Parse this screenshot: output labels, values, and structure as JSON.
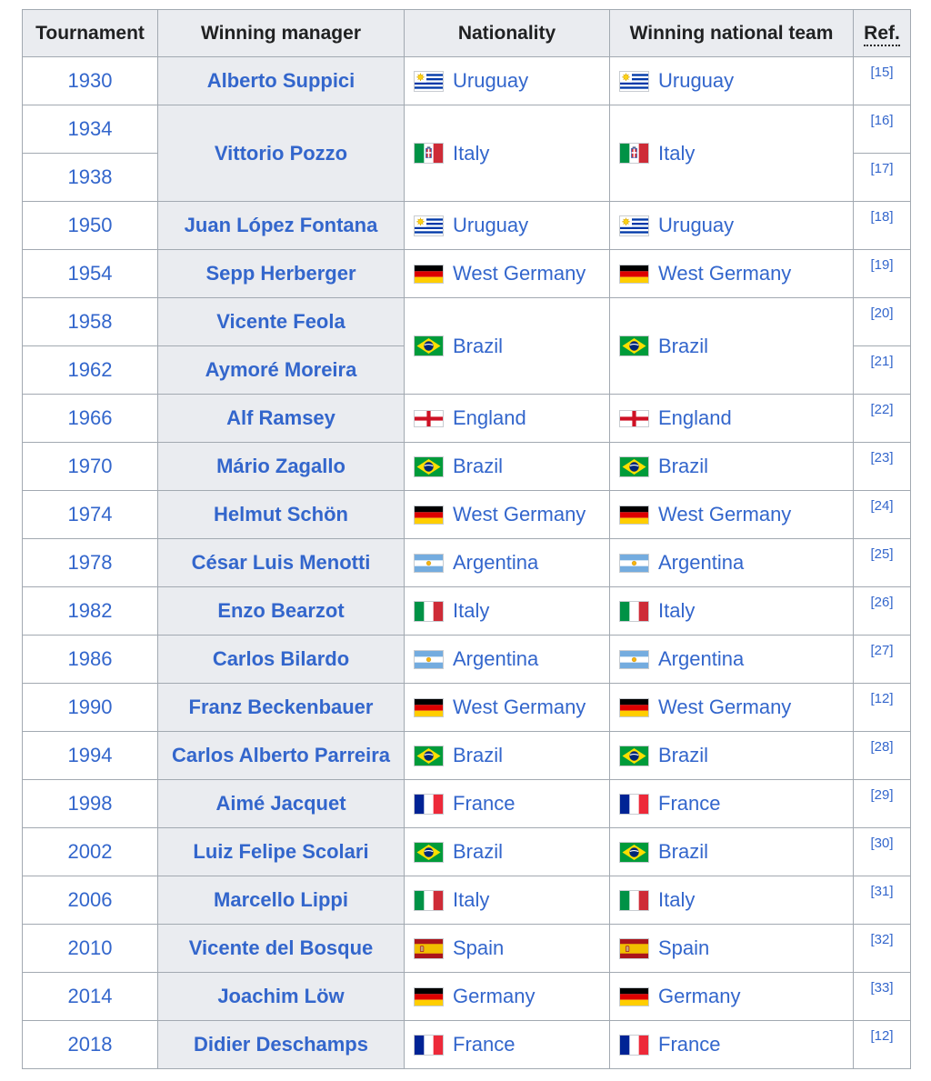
{
  "colors": {
    "link": "#3366cc",
    "text": "#202122",
    "header_background": "#eaecf0",
    "border": "#a2a9b1",
    "flag_border": "#c8ccd1"
  },
  "table": {
    "columns": [
      {
        "label": "Tournament"
      },
      {
        "label": "Winning manager"
      },
      {
        "label": "Nationality"
      },
      {
        "label": "Winning national team"
      },
      {
        "label": "Ref."
      }
    ],
    "rows": [
      {
        "year": "1930",
        "manager": {
          "text": "Alberto Suppici",
          "span": 1
        },
        "nationality": {
          "flag": "uruguay",
          "text": "Uruguay",
          "span": 1
        },
        "team": {
          "flag": "uruguay",
          "text": "Uruguay",
          "span": 1
        },
        "ref": "[15]"
      },
      {
        "year": "1934",
        "manager": {
          "text": "Vittorio Pozzo",
          "span": 2
        },
        "nationality": {
          "flag": "italy-1861",
          "text": "Italy",
          "span": 2
        },
        "team": {
          "flag": "italy-1861",
          "text": "Italy",
          "span": 2
        },
        "ref": "[16]"
      },
      {
        "year": "1938",
        "ref": "[17]"
      },
      {
        "year": "1950",
        "manager": {
          "text": "Juan López Fontana",
          "span": 1
        },
        "nationality": {
          "flag": "uruguay",
          "text": "Uruguay",
          "span": 1
        },
        "team": {
          "flag": "uruguay",
          "text": "Uruguay",
          "span": 1
        },
        "ref": "[18]"
      },
      {
        "year": "1954",
        "manager": {
          "text": "Sepp Herberger",
          "span": 1
        },
        "nationality": {
          "flag": "germany",
          "text": "West Germany",
          "span": 1
        },
        "team": {
          "flag": "germany",
          "text": "West Germany",
          "span": 1
        },
        "ref": "[19]"
      },
      {
        "year": "1958",
        "manager": {
          "text": "Vicente Feola",
          "span": 1
        },
        "nationality": {
          "flag": "brazil",
          "text": "Brazil",
          "span": 2
        },
        "team": {
          "flag": "brazil",
          "text": "Brazil",
          "span": 2
        },
        "ref": "[20]"
      },
      {
        "year": "1962",
        "manager": {
          "text": "Aymoré Moreira",
          "span": 1
        },
        "ref": "[21]"
      },
      {
        "year": "1966",
        "manager": {
          "text": "Alf Ramsey",
          "span": 1
        },
        "nationality": {
          "flag": "england",
          "text": "England",
          "span": 1
        },
        "team": {
          "flag": "england",
          "text": "England",
          "span": 1
        },
        "ref": "[22]"
      },
      {
        "year": "1970",
        "manager": {
          "text": "Mário Zagallo",
          "span": 1
        },
        "nationality": {
          "flag": "brazil",
          "text": "Brazil",
          "span": 1
        },
        "team": {
          "flag": "brazil",
          "text": "Brazil",
          "span": 1
        },
        "ref": "[23]"
      },
      {
        "year": "1974",
        "manager": {
          "text": "Helmut Schön",
          "span": 1
        },
        "nationality": {
          "flag": "germany",
          "text": "West Germany",
          "span": 1
        },
        "team": {
          "flag": "germany",
          "text": "West Germany",
          "span": 1
        },
        "ref": "[24]"
      },
      {
        "year": "1978",
        "manager": {
          "text": "César Luis Menotti",
          "span": 1
        },
        "nationality": {
          "flag": "argentina",
          "text": "Argentina",
          "span": 1
        },
        "team": {
          "flag": "argentina",
          "text": "Argentina",
          "span": 1
        },
        "ref": "[25]"
      },
      {
        "year": "1982",
        "manager": {
          "text": "Enzo Bearzot",
          "span": 1
        },
        "nationality": {
          "flag": "italy",
          "text": "Italy",
          "span": 1
        },
        "team": {
          "flag": "italy",
          "text": "Italy",
          "span": 1
        },
        "ref": "[26]"
      },
      {
        "year": "1986",
        "manager": {
          "text": "Carlos Bilardo",
          "span": 1
        },
        "nationality": {
          "flag": "argentina",
          "text": "Argentina",
          "span": 1
        },
        "team": {
          "flag": "argentina",
          "text": "Argentina",
          "span": 1
        },
        "ref": "[27]"
      },
      {
        "year": "1990",
        "manager": {
          "text": "Franz Beckenbauer",
          "span": 1
        },
        "nationality": {
          "flag": "germany",
          "text": "West Germany",
          "span": 1
        },
        "team": {
          "flag": "germany",
          "text": "West Germany",
          "span": 1
        },
        "ref": "[12]"
      },
      {
        "year": "1994",
        "manager": {
          "text": "Carlos Alberto Parreira",
          "span": 1
        },
        "nationality": {
          "flag": "brazil",
          "text": "Brazil",
          "span": 1
        },
        "team": {
          "flag": "brazil",
          "text": "Brazil",
          "span": 1
        },
        "ref": "[28]"
      },
      {
        "year": "1998",
        "manager": {
          "text": "Aimé Jacquet",
          "span": 1
        },
        "nationality": {
          "flag": "france",
          "text": "France",
          "span": 1
        },
        "team": {
          "flag": "france",
          "text": "France",
          "span": 1
        },
        "ref": "[29]"
      },
      {
        "year": "2002",
        "manager": {
          "text": "Luiz Felipe Scolari",
          "span": 1
        },
        "nationality": {
          "flag": "brazil",
          "text": "Brazil",
          "span": 1
        },
        "team": {
          "flag": "brazil",
          "text": "Brazil",
          "span": 1
        },
        "ref": "[30]"
      },
      {
        "year": "2006",
        "manager": {
          "text": "Marcello Lippi",
          "span": 1
        },
        "nationality": {
          "flag": "italy",
          "text": "Italy",
          "span": 1
        },
        "team": {
          "flag": "italy",
          "text": "Italy",
          "span": 1
        },
        "ref": "[31]"
      },
      {
        "year": "2010",
        "manager": {
          "text": "Vicente del Bosque",
          "span": 1
        },
        "nationality": {
          "flag": "spain",
          "text": "Spain",
          "span": 1
        },
        "team": {
          "flag": "spain",
          "text": "Spain",
          "span": 1
        },
        "ref": "[32]"
      },
      {
        "year": "2014",
        "manager": {
          "text": "Joachim Löw",
          "span": 1
        },
        "nationality": {
          "flag": "germany",
          "text": "Germany",
          "span": 1
        },
        "team": {
          "flag": "germany",
          "text": "Germany",
          "span": 1
        },
        "ref": "[33]"
      },
      {
        "year": "2018",
        "manager": {
          "text": "Didier Deschamps",
          "span": 1
        },
        "nationality": {
          "flag": "france",
          "text": "France",
          "span": 1
        },
        "team": {
          "flag": "france",
          "text": "France",
          "span": 1
        },
        "ref": "[12]"
      }
    ]
  }
}
